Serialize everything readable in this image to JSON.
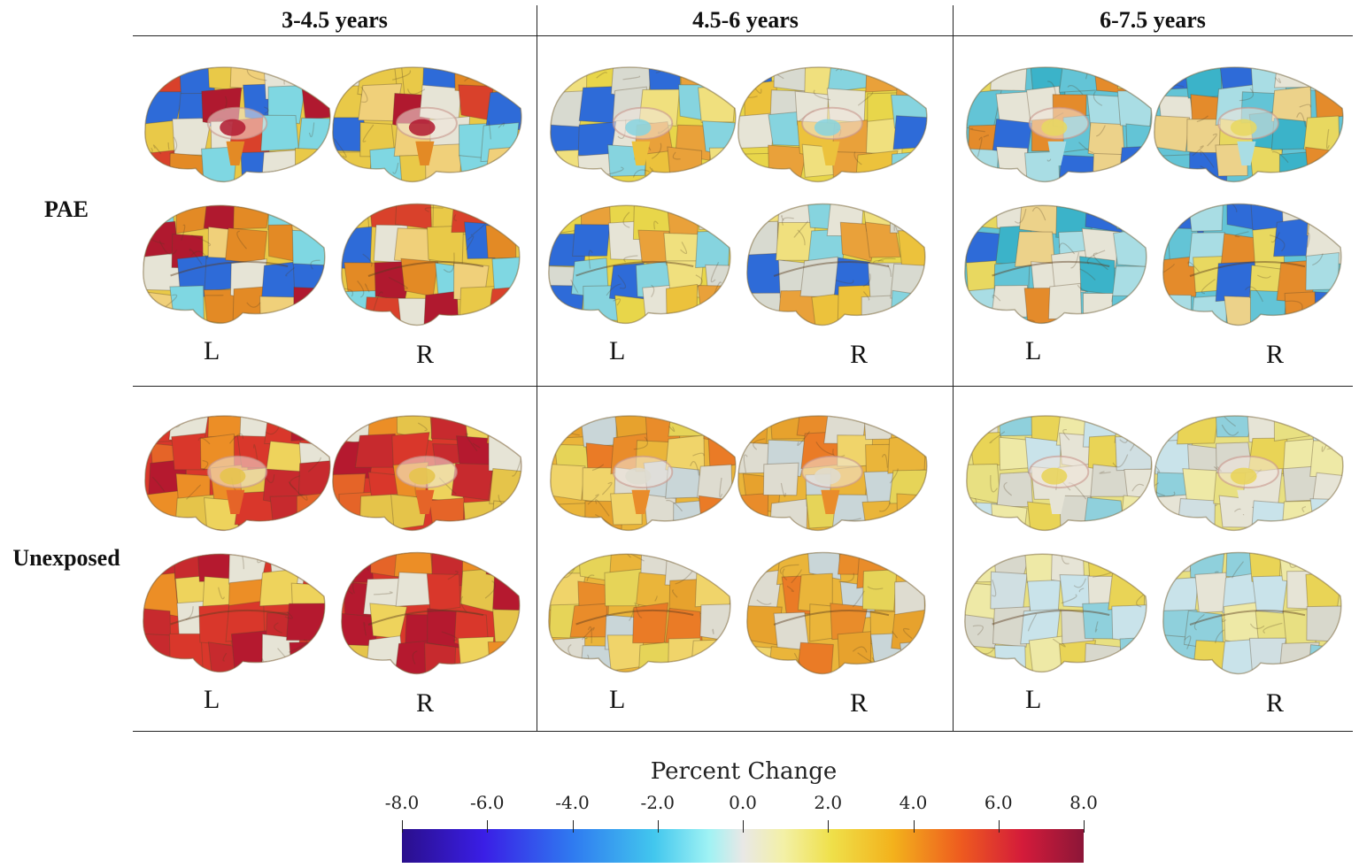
{
  "columns": [
    "3-4.5 years",
    "4.5-6 years",
    "6-7.5 years"
  ],
  "rows": [
    "PAE",
    "Unexposed"
  ],
  "hemisphere_labels": {
    "left": "L",
    "right": "R"
  },
  "legend": {
    "title": "Percent Change",
    "ticks": [
      "-8.0",
      "-6.0",
      "-4.0",
      "-2.0",
      "0.0",
      "2.0",
      "4.0",
      "6.0",
      "8.0"
    ],
    "range": [
      -8.0,
      8.0
    ],
    "colors": [
      "#2a0f8c",
      "#3a1ee6",
      "#2f7af0",
      "#42c7ee",
      "#e9e8e6",
      "#efe04a",
      "#f3b21c",
      "#ee5b1f",
      "#d41b3a",
      "#8c1638"
    ]
  },
  "panels": [
    {
      "row": "PAE",
      "column": "3-4.5 years",
      "palette": [
        "#e9c948",
        "#e38a25",
        "#d9412b",
        "#b0192f",
        "#e6e4d6",
        "#7fd7e2",
        "#2e6bd8",
        "#f0d07a"
      ]
    },
    {
      "row": "PAE",
      "column": "4.5-6 years",
      "palette": [
        "#e8d64a",
        "#ecc23c",
        "#e6e4d6",
        "#86d4df",
        "#2e6bd8",
        "#e9a13a",
        "#f0e07e",
        "#d8dad0"
      ]
    },
    {
      "row": "PAE",
      "column": "6-7.5 years",
      "palette": [
        "#63c4d6",
        "#a9dde4",
        "#e6e4d6",
        "#e8d860",
        "#2e6bd8",
        "#ecd28a",
        "#3bb3c9",
        "#e48b2b"
      ]
    },
    {
      "row": "Unexposed",
      "column": "3-4.5 years",
      "palette": [
        "#d9372b",
        "#e56428",
        "#b5192f",
        "#e5c44a",
        "#e6e4d6",
        "#ec8e26",
        "#c72a2e",
        "#eed35c"
      ]
    },
    {
      "row": "Unexposed",
      "column": "4.5-6 years",
      "palette": [
        "#eab53a",
        "#e98c2a",
        "#e6d458",
        "#dedcd0",
        "#e7a22d",
        "#f0d46a",
        "#c9d6d8",
        "#ea7b26"
      ]
    },
    {
      "row": "Unexposed",
      "column": "6-7.5 years",
      "palette": [
        "#e8e082",
        "#e6e4d6",
        "#d0dfe2",
        "#e9d456",
        "#c9e3ea",
        "#eee9a6",
        "#d8d8cc",
        "#8fd0dc"
      ]
    }
  ]
}
